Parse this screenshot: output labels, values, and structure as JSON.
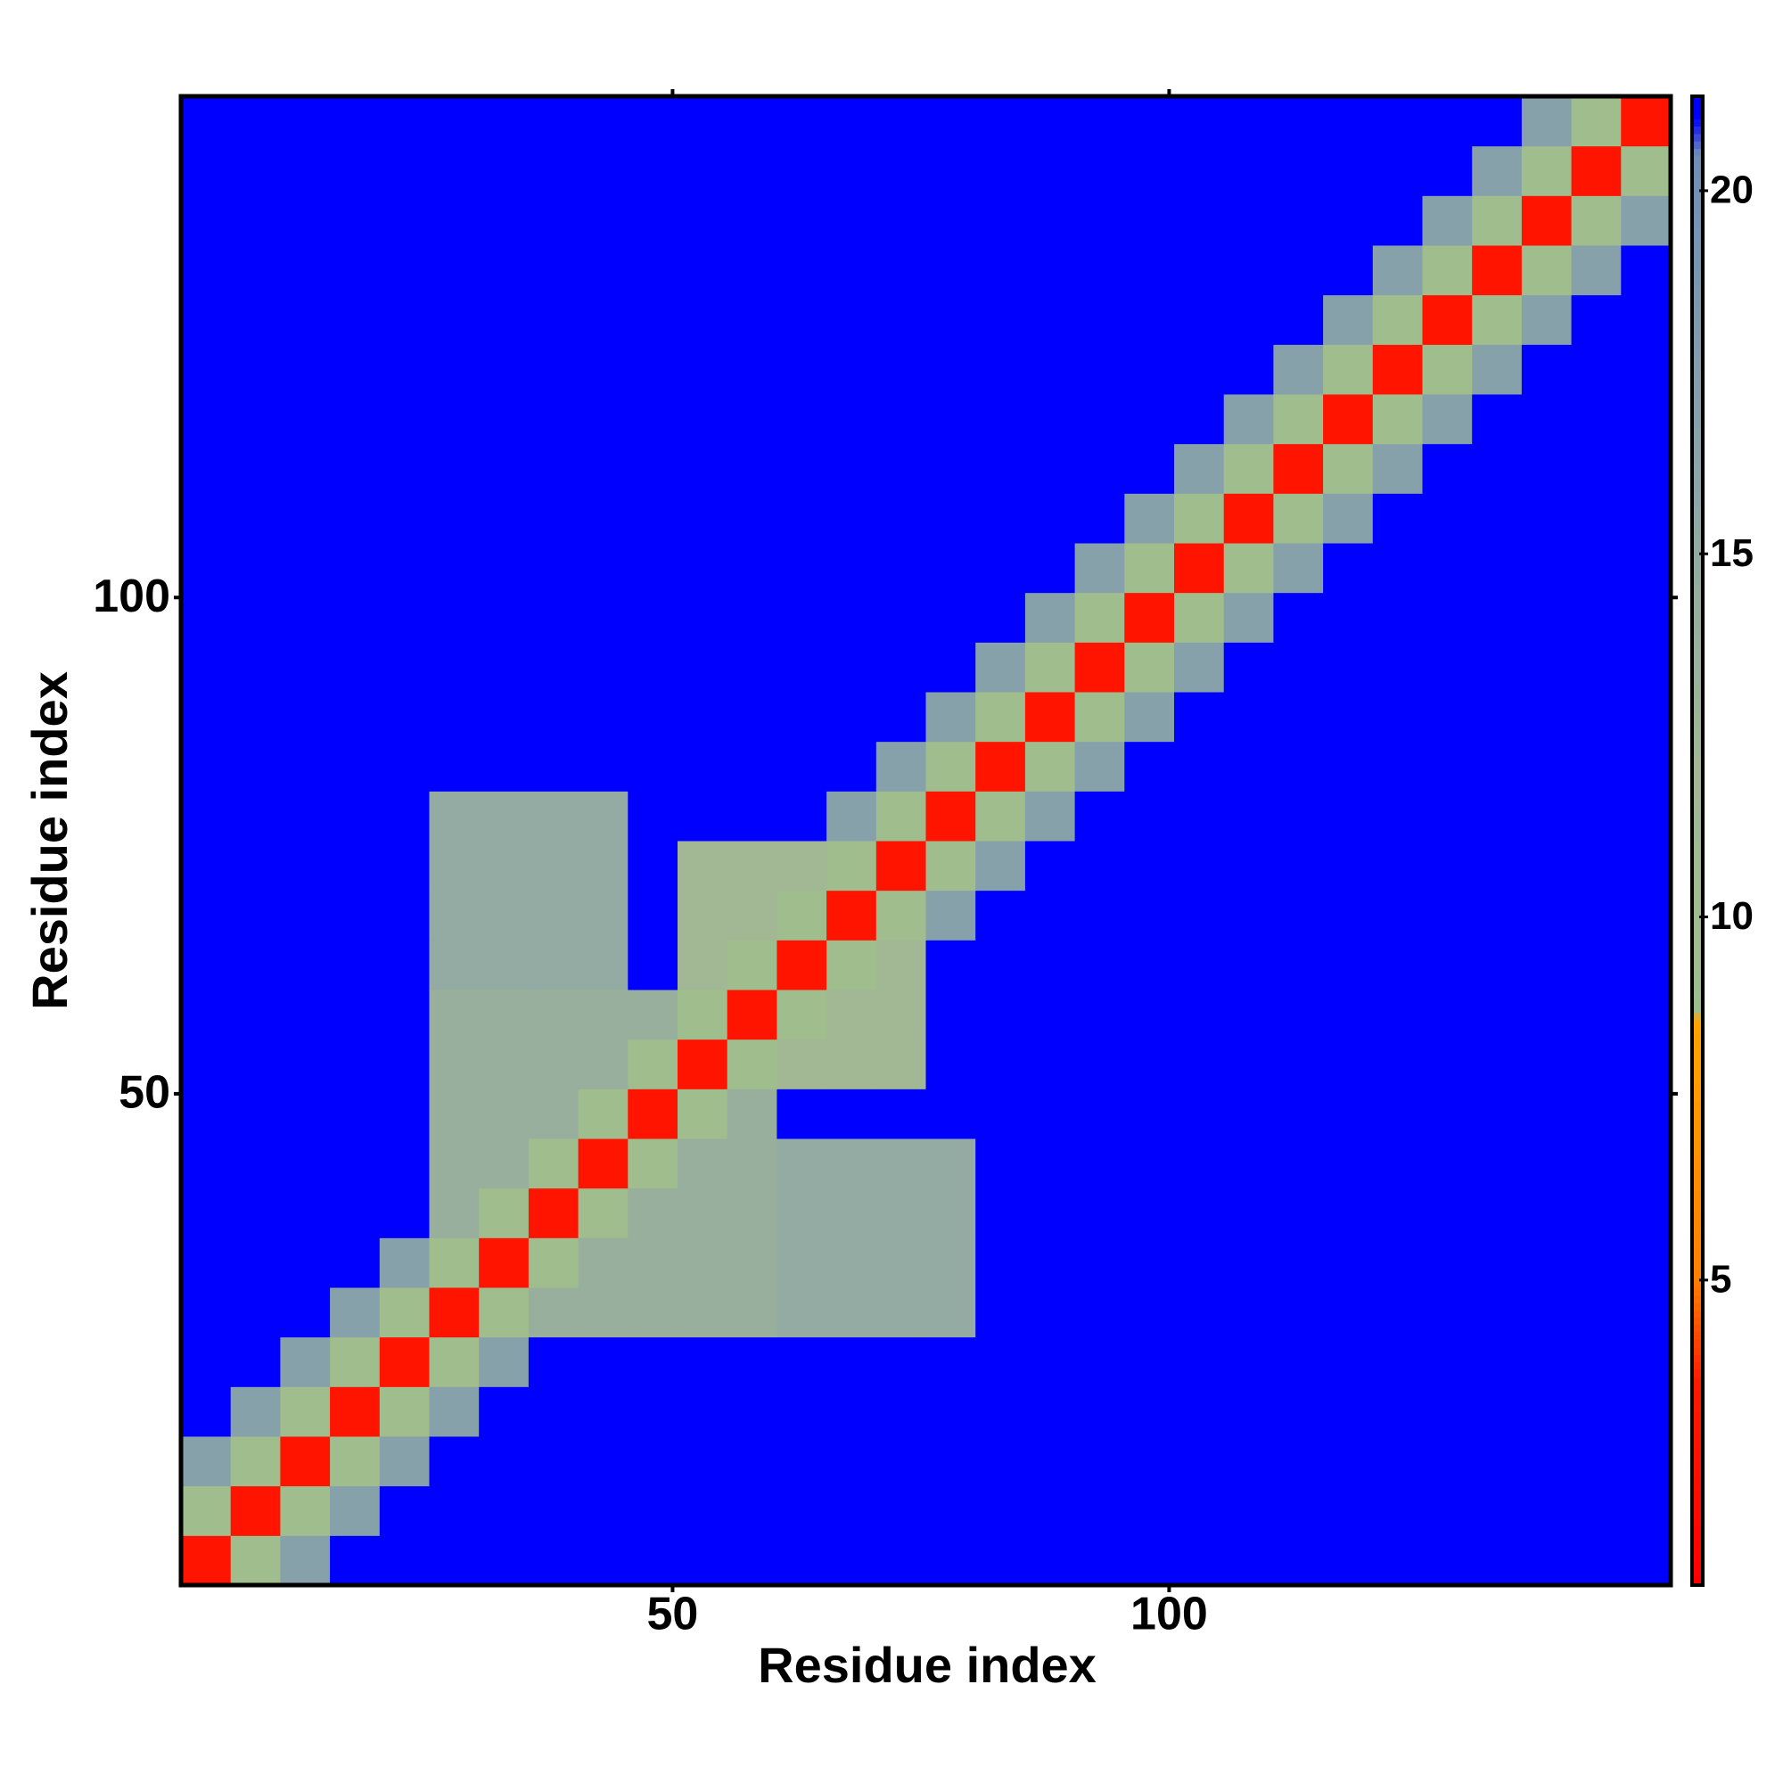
{
  "chart_data": {
    "type": "heatmap",
    "xlabel": "Residue index",
    "ylabel": "Residue index",
    "xbins": [
      0.5,
      5.5,
      10.5,
      15.5,
      20.5,
      25.5,
      30.5,
      35.5,
      40.5,
      45.5,
      50.5,
      55.5,
      60.5,
      65.5,
      70.5,
      75.5,
      80.5,
      85.5,
      90.5,
      95.5,
      100.5,
      105.5,
      110.5,
      115.5,
      120.5,
      125.5,
      130.5,
      135.5,
      140.5,
      145.5,
      150.5
    ],
    "ybins": [
      0.5,
      5.5,
      10.5,
      15.5,
      20.5,
      25.5,
      30.5,
      35.5,
      40.5,
      45.5,
      50.5,
      55.5,
      60.5,
      65.5,
      70.5,
      75.5,
      80.5,
      85.5,
      90.5,
      95.5,
      100.5,
      105.5,
      110.5,
      115.5,
      120.5,
      125.5,
      130.5,
      135.5,
      140.5,
      145.5,
      150.5
    ],
    "xlim": [
      0.5,
      150.5
    ],
    "ylim": [
      0.5,
      150.5
    ],
    "xticks": [
      50,
      100
    ],
    "yticks": [
      50,
      100
    ],
    "zlim": [
      0.8,
      21.3
    ],
    "zticks": [
      5,
      10,
      15,
      20
    ],
    "colorscale": [
      [
        0.8,
        "#ff0000"
      ],
      [
        3.6,
        "#ff1a00"
      ],
      [
        5,
        "#ff7f00"
      ],
      [
        8.6,
        "#ffa500"
      ],
      [
        8.7,
        "#9fbd8c"
      ],
      [
        12,
        "#a2b894"
      ],
      [
        16,
        "#8ea6a8"
      ],
      [
        20.5,
        "#6f8fb6"
      ],
      [
        21,
        "#0000ff"
      ],
      [
        21.3,
        "#0000ff"
      ]
    ],
    "z": [
      [
        3,
        9,
        17,
        21,
        21,
        21,
        21,
        21,
        21,
        21,
        21,
        21,
        21,
        21,
        21,
        21,
        21,
        21,
        21,
        21,
        21,
        21,
        21,
        21,
        21,
        21,
        21,
        21,
        21,
        21
      ],
      [
        9,
        3,
        9,
        17,
        21,
        21,
        21,
        21,
        21,
        21,
        21,
        21,
        21,
        21,
        21,
        21,
        21,
        21,
        21,
        21,
        21,
        21,
        21,
        21,
        21,
        21,
        21,
        21,
        21,
        21
      ],
      [
        17,
        9,
        3,
        9,
        17,
        21,
        21,
        21,
        21,
        21,
        21,
        21,
        21,
        21,
        21,
        21,
        21,
        21,
        21,
        21,
        21,
        21,
        21,
        21,
        21,
        21,
        21,
        21,
        21,
        21
      ],
      [
        21,
        17,
        9,
        3,
        9,
        17,
        21,
        21,
        21,
        21,
        21,
        21,
        21,
        21,
        21,
        21,
        21,
        21,
        21,
        21,
        21,
        21,
        21,
        21,
        21,
        21,
        21,
        21,
        21,
        21
      ],
      [
        21,
        21,
        17,
        9,
        3,
        9,
        17,
        21,
        21,
        21,
        21,
        21,
        21,
        21,
        21,
        21,
        21,
        21,
        21,
        21,
        21,
        21,
        21,
        21,
        21,
        21,
        21,
        21,
        21,
        21
      ],
      [
        21,
        21,
        21,
        17,
        9,
        3,
        9,
        14,
        14,
        14,
        14,
        14,
        15,
        15,
        15,
        15,
        21,
        21,
        21,
        21,
        21,
        21,
        21,
        21,
        21,
        21,
        21,
        21,
        21,
        21
      ],
      [
        21,
        21,
        21,
        21,
        17,
        9,
        3,
        9,
        14,
        14,
        14,
        14,
        15,
        15,
        15,
        15,
        21,
        21,
        21,
        21,
        21,
        21,
        21,
        21,
        21,
        21,
        21,
        21,
        21,
        21
      ],
      [
        21,
        21,
        21,
        21,
        21,
        14,
        9,
        3,
        9,
        14,
        14,
        14,
        15,
        15,
        15,
        15,
        21,
        21,
        21,
        21,
        21,
        21,
        21,
        21,
        21,
        21,
        21,
        21,
        21,
        21
      ],
      [
        21,
        21,
        21,
        21,
        21,
        14,
        14,
        9,
        3,
        9,
        14,
        14,
        15,
        15,
        15,
        15,
        21,
        21,
        21,
        21,
        21,
        21,
        21,
        21,
        21,
        21,
        21,
        21,
        21,
        21
      ],
      [
        21,
        21,
        21,
        21,
        21,
        14,
        14,
        14,
        9,
        3,
        9,
        14,
        21,
        21,
        21,
        21,
        21,
        21,
        21,
        21,
        21,
        21,
        21,
        21,
        21,
        21,
        21,
        21,
        21,
        21
      ],
      [
        21,
        21,
        21,
        21,
        21,
        14,
        14,
        14,
        14,
        9,
        3,
        9,
        12,
        12,
        12,
        21,
        21,
        21,
        21,
        21,
        21,
        21,
        21,
        21,
        21,
        21,
        21,
        21,
        21,
        21
      ],
      [
        21,
        21,
        21,
        21,
        21,
        14,
        14,
        14,
        14,
        14,
        9,
        3,
        9,
        12,
        12,
        21,
        21,
        21,
        21,
        21,
        21,
        21,
        21,
        21,
        21,
        21,
        21,
        21,
        21,
        21
      ],
      [
        21,
        21,
        21,
        21,
        21,
        15,
        15,
        15,
        15,
        21,
        12,
        9,
        3,
        9,
        12,
        21,
        21,
        21,
        21,
        21,
        21,
        21,
        21,
        21,
        21,
        21,
        21,
        21,
        21,
        21
      ],
      [
        21,
        21,
        21,
        21,
        21,
        15,
        15,
        15,
        15,
        21,
        12,
        12,
        9,
        3,
        9,
        17,
        21,
        21,
        21,
        21,
        21,
        21,
        21,
        21,
        21,
        21,
        21,
        21,
        21,
        21
      ],
      [
        21,
        21,
        21,
        21,
        21,
        15,
        15,
        15,
        15,
        21,
        12,
        12,
        12,
        9,
        3,
        9,
        17,
        21,
        21,
        21,
        21,
        21,
        21,
        21,
        21,
        21,
        21,
        21,
        21,
        21
      ],
      [
        21,
        21,
        21,
        21,
        21,
        15,
        15,
        15,
        15,
        21,
        21,
        21,
        21,
        17,
        9,
        3,
        9,
        17,
        21,
        21,
        21,
        21,
        21,
        21,
        21,
        21,
        21,
        21,
        21,
        21
      ],
      [
        21,
        21,
        21,
        21,
        21,
        21,
        21,
        21,
        21,
        21,
        21,
        21,
        21,
        21,
        17,
        9,
        3,
        9,
        17,
        21,
        21,
        21,
        21,
        21,
        21,
        21,
        21,
        21,
        21,
        21
      ],
      [
        21,
        21,
        21,
        21,
        21,
        21,
        21,
        21,
        21,
        21,
        21,
        21,
        21,
        21,
        21,
        17,
        9,
        3,
        9,
        17,
        21,
        21,
        21,
        21,
        21,
        21,
        21,
        21,
        21,
        21
      ],
      [
        21,
        21,
        21,
        21,
        21,
        21,
        21,
        21,
        21,
        21,
        21,
        21,
        21,
        21,
        21,
        21,
        17,
        9,
        3,
        9,
        17,
        21,
        21,
        21,
        21,
        21,
        21,
        21,
        21,
        21
      ],
      [
        21,
        21,
        21,
        21,
        21,
        21,
        21,
        21,
        21,
        21,
        21,
        21,
        21,
        21,
        21,
        21,
        21,
        17,
        9,
        3,
        9,
        17,
        21,
        21,
        21,
        21,
        21,
        21,
        21,
        21
      ],
      [
        21,
        21,
        21,
        21,
        21,
        21,
        21,
        21,
        21,
        21,
        21,
        21,
        21,
        21,
        21,
        21,
        21,
        21,
        17,
        9,
        3,
        9,
        17,
        21,
        21,
        21,
        21,
        21,
        21,
        21
      ],
      [
        21,
        21,
        21,
        21,
        21,
        21,
        21,
        21,
        21,
        21,
        21,
        21,
        21,
        21,
        21,
        21,
        21,
        21,
        21,
        17,
        9,
        3,
        9,
        17,
        21,
        21,
        21,
        21,
        21,
        21
      ],
      [
        21,
        21,
        21,
        21,
        21,
        21,
        21,
        21,
        21,
        21,
        21,
        21,
        21,
        21,
        21,
        21,
        21,
        21,
        21,
        21,
        17,
        9,
        3,
        9,
        17,
        21,
        21,
        21,
        21,
        21
      ],
      [
        21,
        21,
        21,
        21,
        21,
        21,
        21,
        21,
        21,
        21,
        21,
        21,
        21,
        21,
        21,
        21,
        21,
        21,
        21,
        21,
        21,
        17,
        9,
        3,
        9,
        17,
        21,
        21,
        21,
        21
      ],
      [
        21,
        21,
        21,
        21,
        21,
        21,
        21,
        21,
        21,
        21,
        21,
        21,
        21,
        21,
        21,
        21,
        21,
        21,
        21,
        21,
        21,
        21,
        17,
        9,
        3,
        9,
        17,
        21,
        21,
        21
      ],
      [
        21,
        21,
        21,
        21,
        21,
        21,
        21,
        21,
        21,
        21,
        21,
        21,
        21,
        21,
        21,
        21,
        21,
        21,
        21,
        21,
        21,
        21,
        21,
        17,
        9,
        3,
        9,
        17,
        21,
        21
      ],
      [
        21,
        21,
        21,
        21,
        21,
        21,
        21,
        21,
        21,
        21,
        21,
        21,
        21,
        21,
        21,
        21,
        21,
        21,
        21,
        21,
        21,
        21,
        21,
        21,
        17,
        9,
        3,
        9,
        17,
        21
      ],
      [
        21,
        21,
        21,
        21,
        21,
        21,
        21,
        21,
        21,
        21,
        21,
        21,
        21,
        21,
        21,
        21,
        21,
        21,
        21,
        21,
        21,
        21,
        21,
        21,
        21,
        17,
        9,
        3,
        9,
        17
      ],
      [
        21,
        21,
        21,
        21,
        21,
        21,
        21,
        21,
        21,
        21,
        21,
        21,
        21,
        21,
        21,
        21,
        21,
        21,
        21,
        21,
        21,
        21,
        21,
        21,
        21,
        21,
        17,
        9,
        3,
        9
      ],
      [
        21,
        21,
        21,
        21,
        21,
        21,
        21,
        21,
        21,
        21,
        21,
        21,
        21,
        21,
        21,
        21,
        21,
        21,
        21,
        21,
        21,
        21,
        21,
        21,
        21,
        21,
        21,
        17,
        9,
        3
      ]
    ]
  }
}
